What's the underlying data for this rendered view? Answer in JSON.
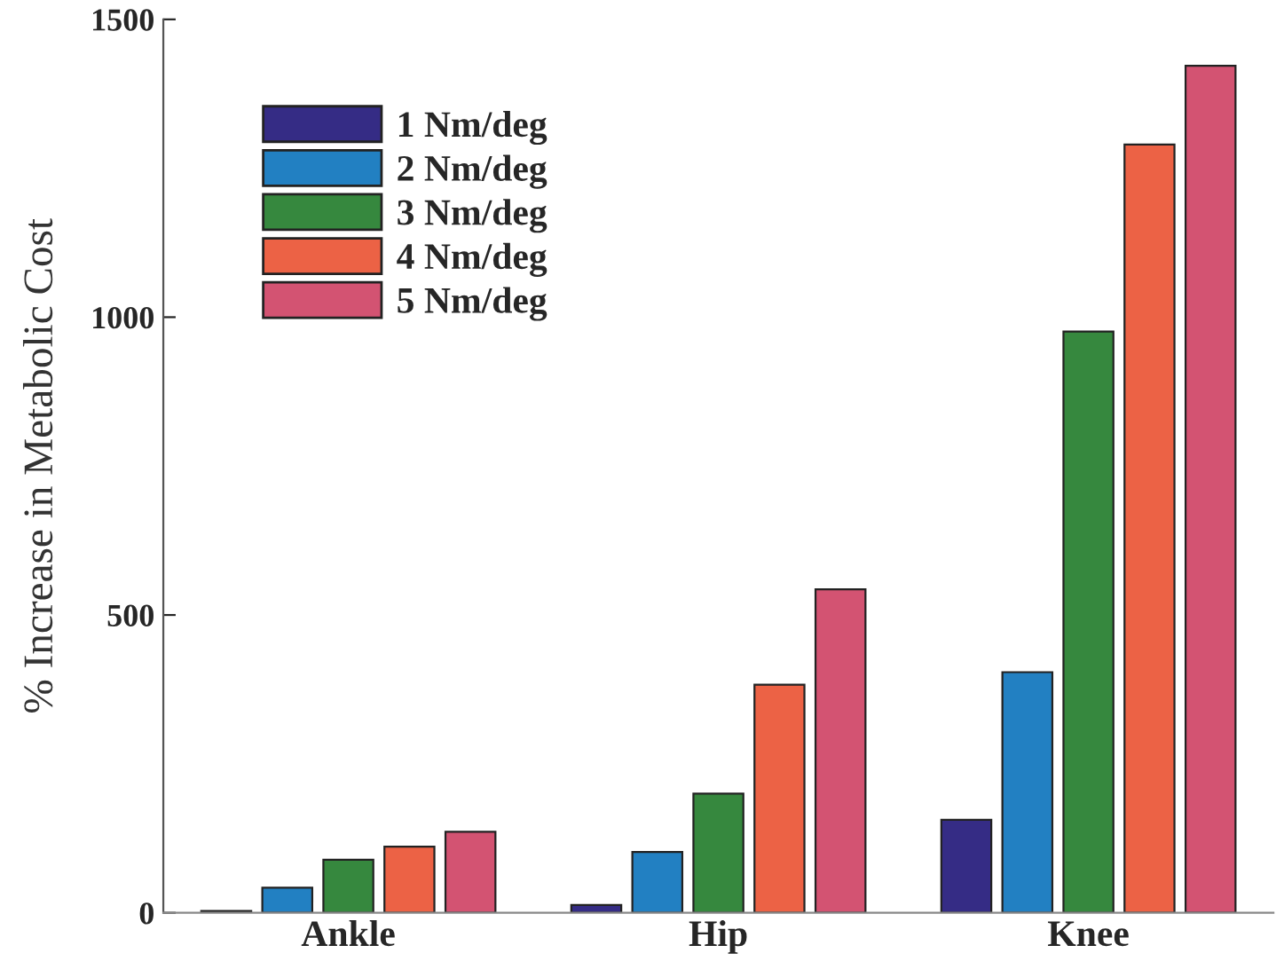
{
  "chart_data": {
    "type": "bar",
    "ylabel": "% Increase in Metabolic Cost",
    "categories": [
      "Ankle",
      "Hip",
      "Knee"
    ],
    "series": [
      {
        "name": "1 Nm/deg",
        "color": "#352c85",
        "values": [
          3,
          13,
          156
        ]
      },
      {
        "name": "2 Nm/deg",
        "color": "#2280c2",
        "values": [
          42,
          102,
          404
        ]
      },
      {
        "name": "3 Nm/deg",
        "color": "#36883e",
        "values": [
          89,
          200,
          976
        ]
      },
      {
        "name": "4 Nm/deg",
        "color": "#ec6245",
        "values": [
          111,
          383,
          1290
        ]
      },
      {
        "name": "5 Nm/deg",
        "color": "#d35372",
        "values": [
          136,
          543,
          1422
        ]
      }
    ],
    "ylim": [
      0,
      1500
    ],
    "yticks": [
      0,
      500,
      1000,
      1500
    ],
    "grid": false,
    "legend": "top left"
  }
}
